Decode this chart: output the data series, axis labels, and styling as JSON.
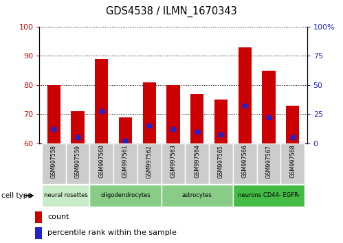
{
  "title": "GDS4538 / ILMN_1670343",
  "samples": [
    "GSM997558",
    "GSM997559",
    "GSM997560",
    "GSM997561",
    "GSM997562",
    "GSM997563",
    "GSM997564",
    "GSM997565",
    "GSM997566",
    "GSM997567",
    "GSM997568"
  ],
  "count_values": [
    80,
    71,
    89,
    69,
    81,
    80,
    77,
    75,
    93,
    85,
    73
  ],
  "percentile_values": [
    65,
    62,
    71,
    61,
    66,
    65,
    64,
    63,
    73,
    69,
    62
  ],
  "y_min": 60,
  "y_max": 100,
  "y_ticks": [
    60,
    70,
    80,
    90,
    100
  ],
  "bar_color": "#cc0000",
  "dot_color": "#2222cc",
  "cell_types": [
    {
      "label": "neural rosettes",
      "start": 0,
      "end": 1,
      "color": "#cceecc"
    },
    {
      "label": "oligodendrocytes",
      "start": 2,
      "end": 4,
      "color": "#88cc88"
    },
    {
      "label": "astrocytes",
      "start": 5,
      "end": 7,
      "color": "#88cc88"
    },
    {
      "label": "neurons CD44- EGFR-",
      "start": 8,
      "end": 10,
      "color": "#44aa44"
    }
  ],
  "legend_count_label": "count",
  "legend_percentile_label": "percentile rank within the sample",
  "cell_type_label": "cell type",
  "bar_color_red": "#cc0000",
  "y_left_color": "#cc0000",
  "y_right_color": "#2222cc",
  "sample_box_color": "#cccccc",
  "sample_box_edge": "#aaaaaa"
}
